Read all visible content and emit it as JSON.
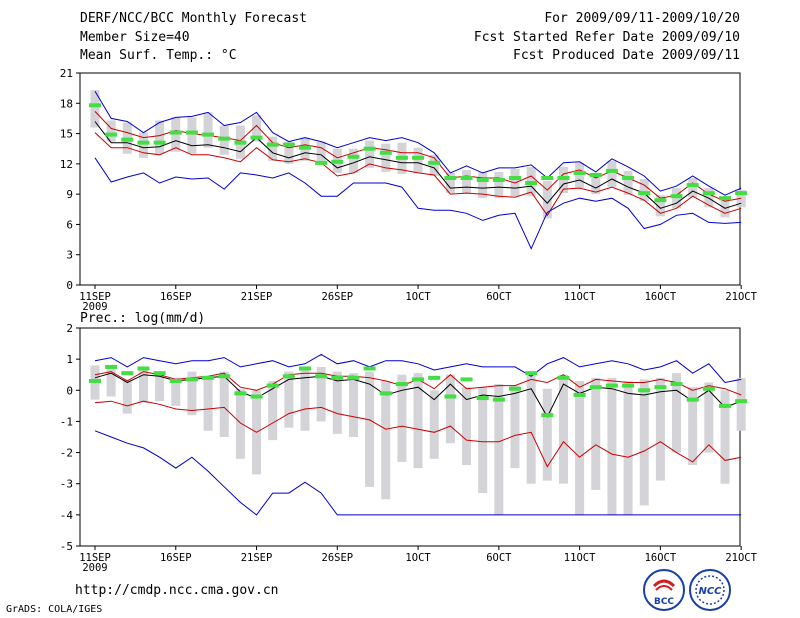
{
  "header": {
    "title": "DERF/NCC/BCC Monthly Forecast",
    "member_size": "Member Size=40",
    "variable": "Mean Surf. Temp.: °C",
    "period": "For 2009/09/11-2009/10/20",
    "fcst_started": "Fcst Started Refer Date 2009/09/10",
    "fcst_produced": "Fcst Produced Date 2009/09/11"
  },
  "footer": {
    "url": "http://cmdp.ncc.cma.gov.cn",
    "credit": "GrADS: COLA/IGES",
    "logo_left": "BCC",
    "logo_right": "NCC"
  },
  "colors": {
    "max_line": "#0000cc",
    "min_line": "#0000cc",
    "mean_line": "#000000",
    "band_line": "#cc0000",
    "box": "#d3d3d8",
    "observed": "#44dd44"
  },
  "chart_data": [
    {
      "type": "line",
      "panel": "temperature",
      "title": "",
      "ylabel": "",
      "ylim": [
        0,
        21
      ],
      "yticks": [
        "0",
        "3",
        "6",
        "9",
        "12",
        "15",
        "18",
        "21"
      ],
      "xticks": [
        {
          "day": 0,
          "label": "11SEP",
          "sub": "2009"
        },
        {
          "day": 5,
          "label": "16SEP",
          "sub": ""
        },
        {
          "day": 10,
          "label": "21SEP",
          "sub": ""
        },
        {
          "day": 15,
          "label": "26SEP",
          "sub": ""
        },
        {
          "day": 20,
          "label": "1OCT",
          "sub": ""
        },
        {
          "day": 25,
          "label": "6OCT",
          "sub": ""
        },
        {
          "day": 30,
          "label": "11OCT",
          "sub": ""
        },
        {
          "day": 35,
          "label": "16OCT",
          "sub": ""
        },
        {
          "day": 40,
          "label": "21OCT",
          "sub": ""
        }
      ],
      "days": 39,
      "series": [
        {
          "name": "max",
          "values": [
            19.2,
            16.5,
            16.2,
            15.1,
            16.1,
            16.6,
            16.7,
            17.1,
            15.8,
            16.1,
            17.1,
            15.1,
            14.2,
            14.6,
            14.2,
            13.6,
            14.1,
            14.6,
            14.3,
            14.6,
            14.1,
            13.1,
            11.1,
            11.8,
            11.1,
            11.6,
            11.6,
            11.9,
            10.6,
            12.1,
            12.2,
            11.2,
            12.5,
            11.7,
            10.8,
            9.3,
            9.8,
            10.8,
            9.8,
            8.9,
            9.6
          ]
        },
        {
          "name": "upper",
          "values": [
            17.2,
            15.5,
            15.1,
            14.6,
            14.8,
            15.3,
            15.0,
            14.8,
            14.6,
            14.3,
            15.8,
            14.1,
            13.6,
            13.9,
            13.6,
            12.6,
            13.1,
            13.6,
            13.4,
            13.1,
            13.1,
            12.6,
            10.6,
            10.8,
            10.6,
            10.6,
            10.1,
            10.8,
            9.4,
            11.0,
            11.4,
            10.6,
            11.3,
            10.6,
            9.9,
            8.6,
            8.9,
            10.1,
            9.0,
            8.3,
            8.6
          ]
        },
        {
          "name": "mean",
          "values": [
            16.2,
            14.1,
            14.1,
            13.6,
            13.7,
            14.3,
            13.8,
            13.9,
            13.6,
            13.2,
            14.6,
            13.1,
            12.6,
            13.1,
            12.9,
            11.6,
            12.1,
            12.7,
            12.4,
            12.1,
            12.1,
            11.6,
            9.6,
            9.7,
            9.6,
            9.7,
            9.6,
            9.8,
            8.1,
            10.0,
            10.4,
            9.6,
            10.5,
            9.7,
            9.1,
            7.6,
            8.1,
            9.3,
            8.6,
            7.6,
            8.1
          ]
        },
        {
          "name": "lower",
          "values": [
            15.1,
            13.6,
            13.6,
            13.1,
            12.9,
            13.6,
            12.9,
            12.9,
            12.6,
            12.2,
            13.6,
            12.4,
            12.2,
            12.5,
            12.1,
            10.8,
            11.1,
            12.0,
            11.6,
            11.4,
            11.1,
            10.9,
            9.0,
            9.1,
            9.0,
            8.8,
            8.7,
            9.2,
            6.9,
            9.5,
            9.6,
            9.2,
            9.7,
            9.1,
            8.4,
            7.1,
            7.6,
            8.8,
            7.9,
            7.1,
            7.6
          ]
        },
        {
          "name": "min",
          "values": [
            12.6,
            10.2,
            10.7,
            11.1,
            10.1,
            10.7,
            10.5,
            10.6,
            9.5,
            11.1,
            10.9,
            10.6,
            11.1,
            10.1,
            8.8,
            8.8,
            10.1,
            10.1,
            10.1,
            9.7,
            7.6,
            7.4,
            7.4,
            7.1,
            6.4,
            6.9,
            7.1,
            3.6,
            7.2,
            8.1,
            8.6,
            8.3,
            8.6,
            7.6,
            5.6,
            6.0,
            6.9,
            7.1,
            6.2,
            6.1,
            6.2
          ]
        }
      ],
      "boxes": [
        [
          15.6,
          19.3
        ],
        [
          14.2,
          16.3
        ],
        [
          13.0,
          16.1
        ],
        [
          12.6,
          15.1
        ],
        [
          13.0,
          16.3
        ],
        [
          13.2,
          16.6
        ],
        [
          13.0,
          16.6
        ],
        [
          13.6,
          17.1
        ],
        [
          12.9,
          15.8
        ],
        [
          12.5,
          15.8
        ],
        [
          14.2,
          16.8
        ],
        [
          12.3,
          14.7
        ],
        [
          12.0,
          14.2
        ],
        [
          12.3,
          14.6
        ],
        [
          12.3,
          14.2
        ],
        [
          11.1,
          13.5
        ],
        [
          11.1,
          13.5
        ],
        [
          11.6,
          14.3
        ],
        [
          11.2,
          14.0
        ],
        [
          11.0,
          14.1
        ],
        [
          11.1,
          13.6
        ],
        [
          10.8,
          12.9
        ],
        [
          9.1,
          11.1
        ],
        [
          9.1,
          11.4
        ],
        [
          8.6,
          11.2
        ],
        [
          8.6,
          11.2
        ],
        [
          8.8,
          11.5
        ],
        [
          8.8,
          11.7
        ],
        [
          6.6,
          10.3
        ],
        [
          9.1,
          11.7
        ],
        [
          9.6,
          12.1
        ],
        [
          9.0,
          11.1
        ],
        [
          9.7,
          12.3
        ],
        [
          8.9,
          11.3
        ],
        [
          8.3,
          10.5
        ],
        [
          6.8,
          8.9
        ],
        [
          7.6,
          9.6
        ],
        [
          8.7,
          10.6
        ],
        [
          7.7,
          9.6
        ],
        [
          6.7,
          8.8
        ],
        [
          7.7,
          9.4
        ]
      ],
      "observed": [
        17.8,
        14.9,
        14.4,
        14.1,
        14.1,
        15.1,
        15.1,
        14.9,
        14.5,
        14.1,
        14.6,
        13.9,
        13.9,
        13.6,
        12.1,
        12.2,
        12.7,
        13.5,
        13.1,
        12.6,
        12.6,
        12.1,
        10.6,
        10.6,
        10.4,
        10.4,
        10.6,
        10.1,
        10.6,
        10.6,
        11.1,
        10.9,
        11.3,
        10.6,
        9.1,
        8.4,
        8.8,
        9.9,
        9.1,
        8.6,
        9.1
      ]
    },
    {
      "type": "line",
      "panel": "precipitation",
      "title": "Prec.: log(mm/d)",
      "ylabel": "",
      "ylim": [
        -5,
        2
      ],
      "yticks": [
        "-5",
        "-4",
        "-3",
        "-2",
        "-1",
        "0",
        "1",
        "2"
      ],
      "xticks": [
        {
          "day": 0,
          "label": "11SEP",
          "sub": "2009"
        },
        {
          "day": 5,
          "label": "16SEP",
          "sub": ""
        },
        {
          "day": 10,
          "label": "21SEP",
          "sub": ""
        },
        {
          "day": 15,
          "label": "26SEP",
          "sub": ""
        },
        {
          "day": 20,
          "label": "1OCT",
          "sub": ""
        },
        {
          "day": 25,
          "label": "6OCT",
          "sub": ""
        },
        {
          "day": 30,
          "label": "11OCT",
          "sub": ""
        },
        {
          "day": 35,
          "label": "16OCT",
          "sub": ""
        },
        {
          "day": 40,
          "label": "21OCT",
          "sub": ""
        }
      ],
      "days": 39,
      "series": [
        {
          "name": "max",
          "values": [
            0.95,
            1.05,
            0.75,
            1.05,
            0.95,
            0.85,
            0.95,
            0.95,
            1.05,
            0.75,
            0.85,
            0.95,
            0.75,
            0.85,
            1.15,
            0.85,
            0.95,
            0.75,
            0.95,
            0.95,
            0.85,
            0.65,
            0.75,
            0.85,
            0.75,
            0.75,
            0.75,
            0.45,
            0.85,
            1.05,
            0.75,
            0.85,
            0.95,
            0.85,
            0.65,
            0.75,
            0.95,
            0.55,
            0.85,
            0.25,
            0.35
          ]
        },
        {
          "name": "upper",
          "values": [
            0.5,
            0.6,
            0.3,
            0.6,
            0.5,
            0.35,
            0.4,
            0.45,
            0.55,
            0.1,
            0.0,
            0.2,
            0.5,
            0.55,
            0.55,
            0.45,
            0.45,
            0.4,
            0.3,
            0.15,
            0.35,
            0.05,
            0.5,
            0.05,
            0.1,
            0.15,
            0.15,
            0.35,
            0.25,
            0.5,
            0.1,
            0.35,
            0.3,
            0.25,
            0.25,
            0.35,
            0.25,
            0.0,
            0.15,
            0.05,
            -0.15
          ]
        },
        {
          "name": "mean",
          "values": [
            0.4,
            0.55,
            0.25,
            0.5,
            0.45,
            0.3,
            0.35,
            0.4,
            0.45,
            -0.05,
            -0.25,
            0.05,
            0.35,
            0.4,
            0.45,
            0.3,
            0.35,
            0.2,
            -0.15,
            0.0,
            0.1,
            -0.3,
            0.2,
            -0.3,
            -0.15,
            -0.2,
            -0.1,
            0.05,
            -0.85,
            0.2,
            -0.1,
            0.1,
            0.05,
            -0.1,
            -0.15,
            -0.05,
            0.0,
            -0.35,
            0.0,
            -0.55,
            -0.35
          ]
        },
        {
          "name": "lower",
          "values": [
            -0.4,
            -0.35,
            -0.5,
            -0.35,
            -0.45,
            -0.6,
            -0.65,
            -0.6,
            -0.55,
            -1.05,
            -1.35,
            -1.05,
            -0.75,
            -0.6,
            -0.55,
            -0.75,
            -0.85,
            -0.95,
            -1.25,
            -1.15,
            -1.25,
            -1.35,
            -1.15,
            -1.6,
            -1.65,
            -1.65,
            -1.45,
            -1.35,
            -2.45,
            -1.65,
            -2.15,
            -1.75,
            -2.05,
            -2.15,
            -1.95,
            -1.65,
            -2.0,
            -2.3,
            -1.75,
            -2.25,
            -2.15
          ]
        },
        {
          "name": "min",
          "values": [
            -1.3,
            -1.5,
            -1.7,
            -1.85,
            -2.15,
            -2.5,
            -2.15,
            -2.6,
            -3.1,
            -3.6,
            -4.0,
            -3.3,
            -3.3,
            -2.95,
            -3.3,
            -4.0,
            -4.0,
            -4.0,
            -4.0,
            -4.0,
            -4.0,
            -4.0,
            -4.0,
            -4.0,
            -4.0,
            -4.0,
            -4.0,
            -4.0,
            -4.0,
            -4.0,
            -4.0,
            -4.0,
            -4.0,
            -4.0,
            -4.0,
            -4.0,
            -4.0,
            -4.0,
            -4.0,
            -4.0,
            -4.0
          ]
        }
      ],
      "boxes": [
        [
          -0.3,
          0.8
        ],
        [
          -0.2,
          0.7
        ],
        [
          -0.75,
          0.35
        ],
        [
          -0.4,
          0.7
        ],
        [
          -0.35,
          0.55
        ],
        [
          -0.5,
          0.4
        ],
        [
          -0.8,
          0.6
        ],
        [
          -1.3,
          0.4
        ],
        [
          -1.5,
          0.6
        ],
        [
          -2.2,
          0.05
        ],
        [
          -2.7,
          0.0
        ],
        [
          -1.6,
          0.3
        ],
        [
          -1.2,
          0.6
        ],
        [
          -1.3,
          0.65
        ],
        [
          -1.0,
          0.75
        ],
        [
          -1.4,
          0.6
        ],
        [
          -1.5,
          0.55
        ],
        [
          -3.1,
          0.6
        ],
        [
          -3.5,
          0.3
        ],
        [
          -2.3,
          0.5
        ],
        [
          -2.5,
          0.55
        ],
        [
          -2.2,
          0.0
        ],
        [
          -1.7,
          0.5
        ],
        [
          -2.4,
          0.1
        ],
        [
          -3.3,
          0.1
        ],
        [
          -4.0,
          0.2
        ],
        [
          -2.5,
          0.15
        ],
        [
          -3.0,
          0.5
        ],
        [
          -2.9,
          0.05
        ],
        [
          -3.0,
          0.5
        ],
        [
          -4.0,
          0.3
        ],
        [
          -3.2,
          0.4
        ],
        [
          -4.0,
          0.4
        ],
        [
          -4.0,
          0.3
        ],
        [
          -3.7,
          0.35
        ],
        [
          -2.9,
          0.4
        ],
        [
          -2.0,
          0.55
        ],
        [
          -2.4,
          0.1
        ],
        [
          -2.0,
          0.25
        ],
        [
          -3.0,
          0.0
        ],
        [
          -1.3,
          0.4
        ]
      ],
      "observed": [
        0.3,
        0.75,
        0.55,
        0.7,
        0.55,
        0.3,
        0.35,
        0.4,
        0.45,
        -0.1,
        -0.2,
        0.15,
        0.45,
        0.7,
        0.45,
        0.4,
        0.4,
        0.7,
        -0.1,
        0.2,
        0.35,
        0.4,
        -0.2,
        0.35,
        -0.25,
        -0.3,
        0.05,
        0.55,
        -0.8,
        0.4,
        -0.15,
        0.1,
        0.15,
        0.15,
        0.0,
        0.1,
        0.2,
        -0.3,
        0.05,
        -0.5,
        -0.35
      ]
    }
  ]
}
